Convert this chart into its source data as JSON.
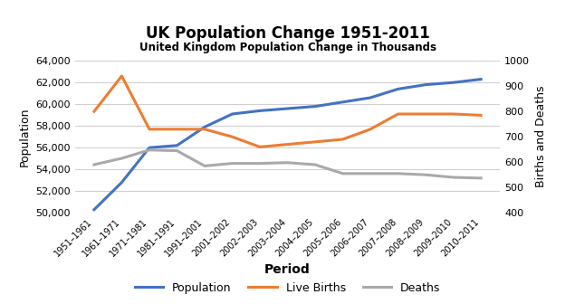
{
  "periods": [
    "1951–1961",
    "1961–1971",
    "1971–1981",
    "1981–1991",
    "1991–2001",
    "2001–2002",
    "2002–2003",
    "2003–2004",
    "2004–2005",
    "2005–2006",
    "2006–2007",
    "2007–2008",
    "2008–2009",
    "2009–2010",
    "2010–2011"
  ],
  "population": [
    50290,
    52800,
    56000,
    56200,
    57900,
    59100,
    59400,
    59600,
    59800,
    60200,
    60600,
    61400,
    61800,
    62000,
    62300
  ],
  "live_births": [
    800,
    940,
    730,
    730,
    730,
    700,
    660,
    670,
    680,
    690,
    730,
    790,
    790,
    790,
    785
  ],
  "deaths": [
    590,
    615,
    648,
    645,
    585,
    595,
    595,
    598,
    590,
    555,
    555,
    555,
    550,
    540,
    537
  ],
  "title": "UK Population Change 1951-2011",
  "subtitle": "United Kingdom Population Change in Thousands",
  "xlabel": "Period",
  "ylabel_left": "Population",
  "ylabel_right": "Births and Deaths",
  "pop_color": "#4472C4",
  "births_color": "#ED7D31",
  "deaths_color": "#A9A9A9",
  "ylim_left": [
    50000,
    64000
  ],
  "ylim_right": [
    400,
    1000
  ],
  "yticks_left": [
    50000,
    52000,
    54000,
    56000,
    58000,
    60000,
    62000,
    64000
  ],
  "yticks_right": [
    400,
    500,
    600,
    700,
    800,
    900,
    1000
  ],
  "legend_labels": [
    "Population",
    "Live Births",
    "Deaths"
  ],
  "background_color": "#ffffff"
}
